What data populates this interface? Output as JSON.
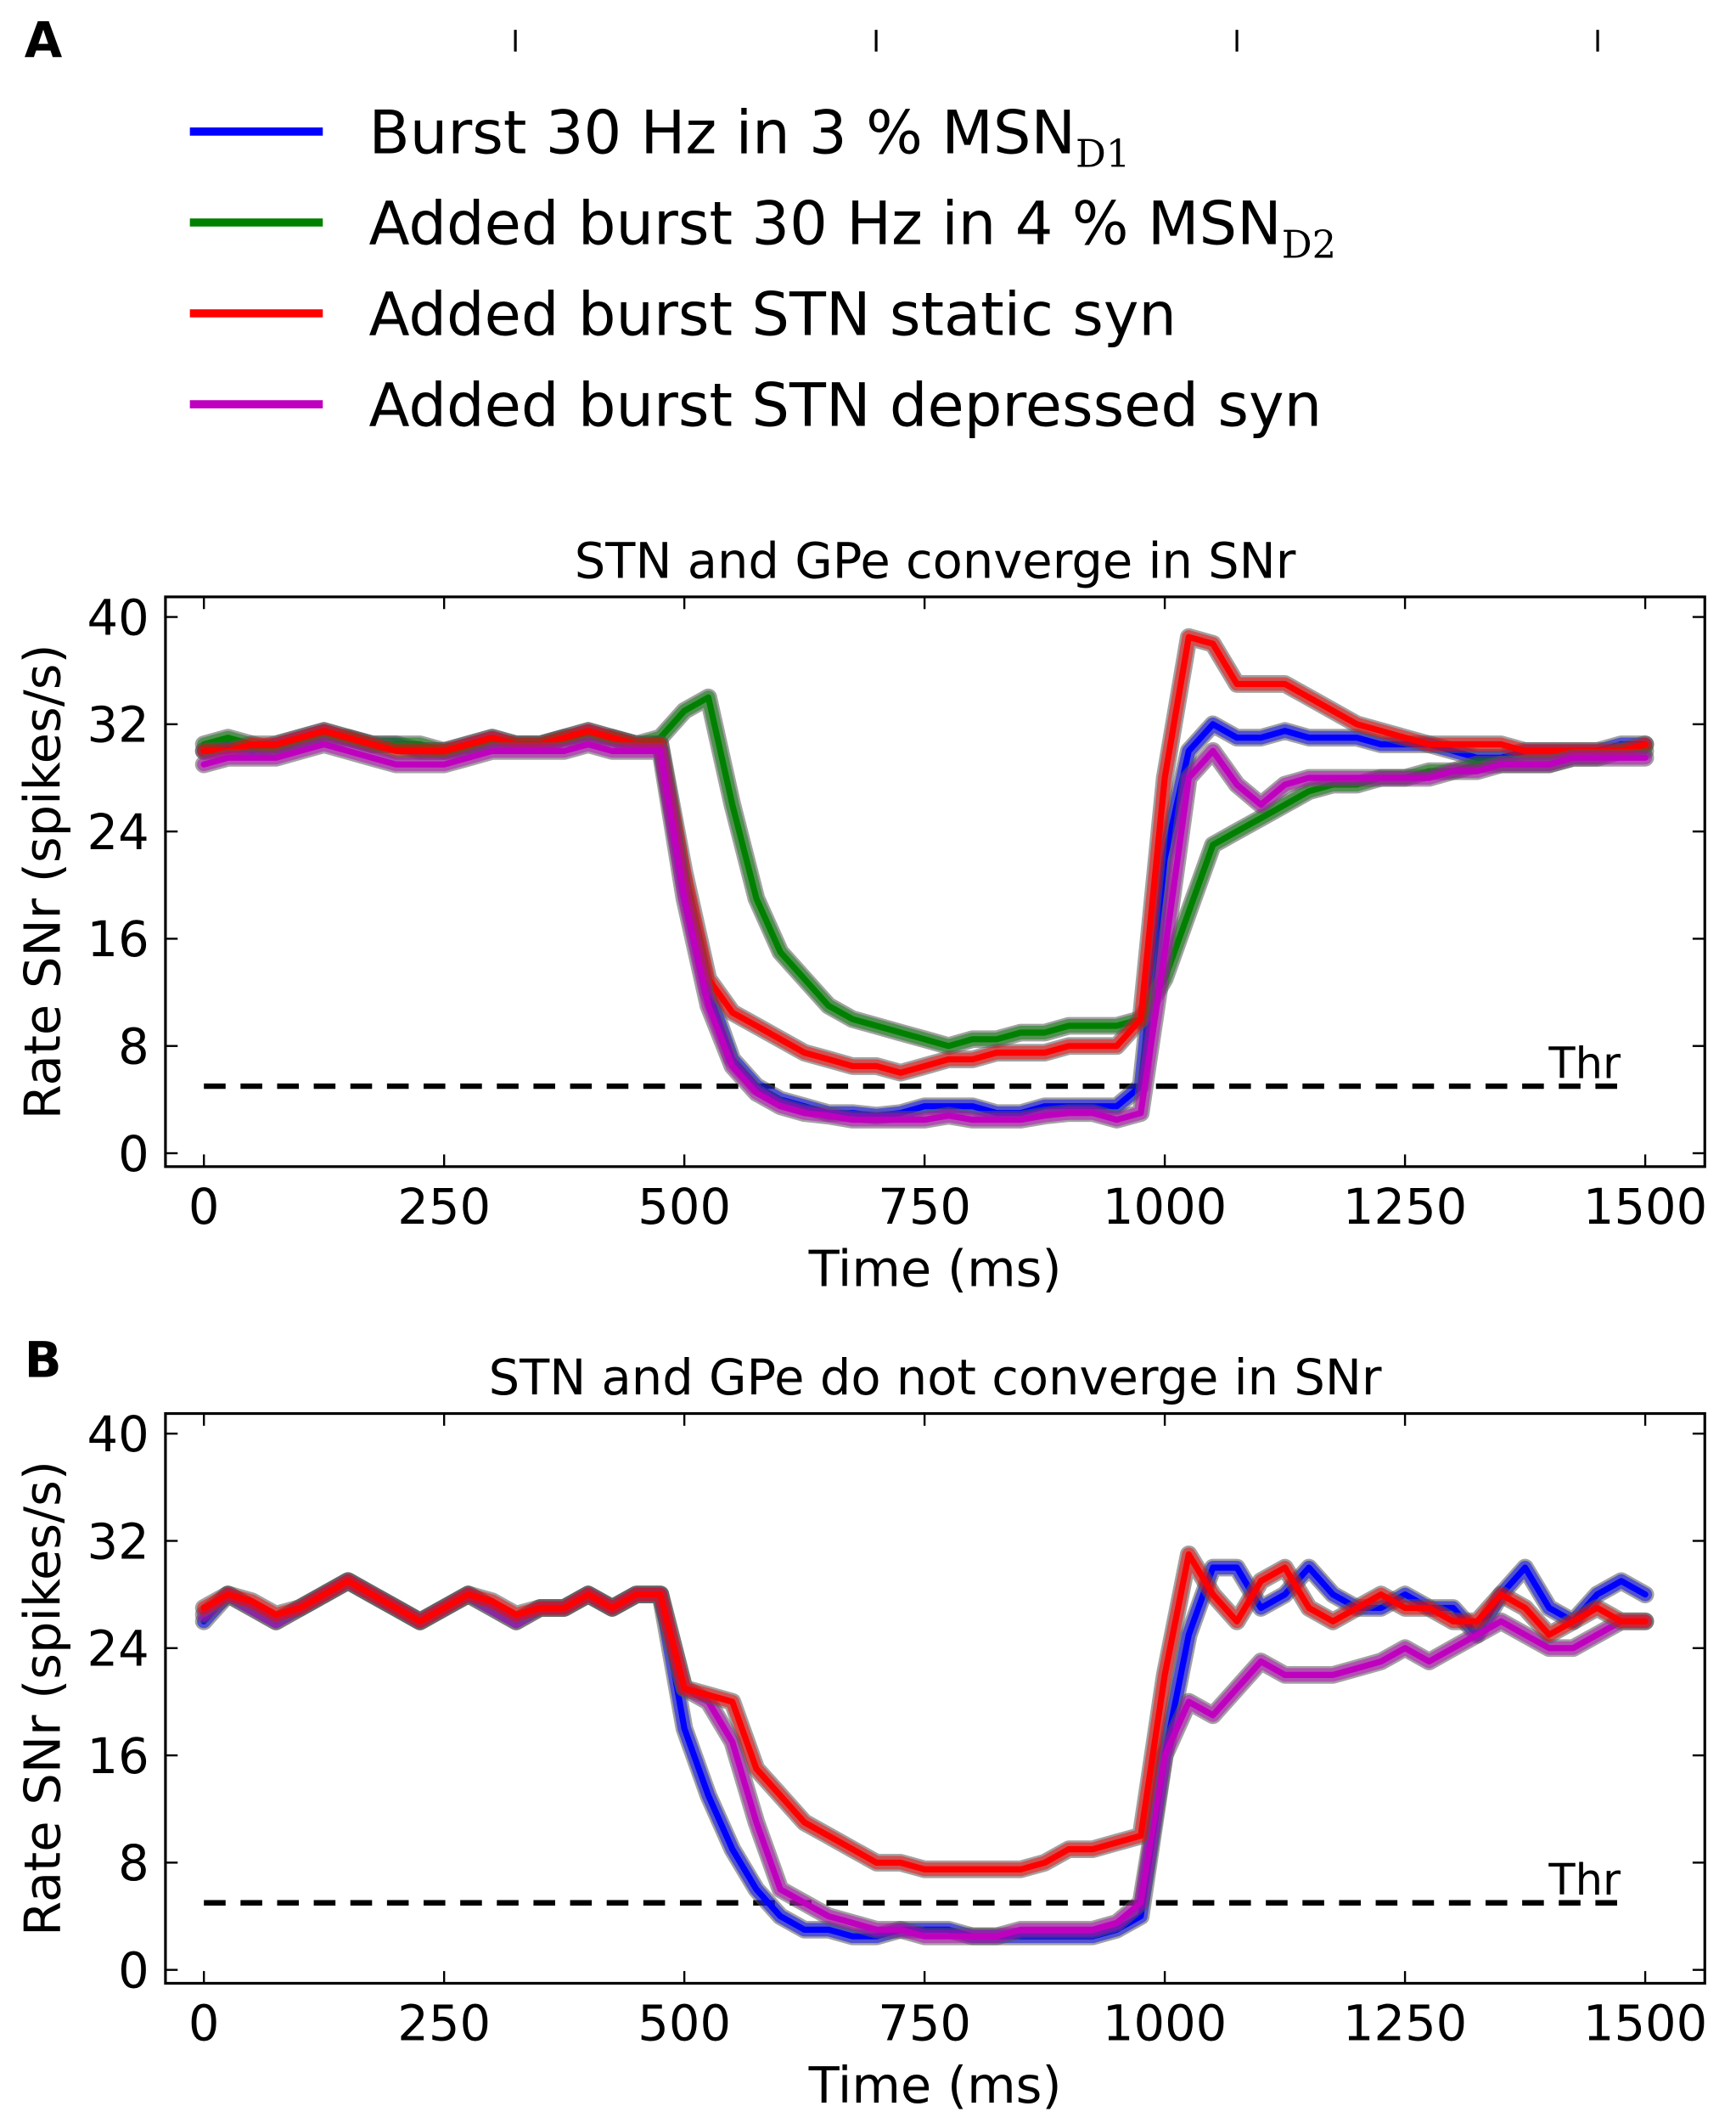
{
  "chart_data": [
    {
      "type": "line",
      "panel": "A",
      "title": "STN and GPe converge in SNr",
      "xlabel": "Time (ms)",
      "ylabel": "Rate SNr (spikes/s)",
      "legend": "top",
      "xlim": [
        -40,
        1562
      ],
      "ylim": [
        -1,
        41.5
      ],
      "xticks": [
        0,
        250,
        500,
        750,
        1000,
        1250,
        1500
      ],
      "yticks": [
        0,
        8,
        16,
        24,
        32,
        40
      ],
      "threshold": {
        "value": 5,
        "label": "Thr",
        "x": [
          0,
          1480
        ]
      },
      "x": [
        0,
        25,
        50,
        75,
        100,
        125,
        150,
        175,
        200,
        225,
        250,
        275,
        300,
        325,
        350,
        375,
        400,
        425,
        450,
        475,
        500,
        525,
        550,
        575,
        600,
        625,
        650,
        675,
        700,
        725,
        750,
        775,
        800,
        825,
        850,
        875,
        900,
        925,
        950,
        975,
        1000,
        1025,
        1050,
        1075,
        1100,
        1125,
        1150,
        1175,
        1200,
        1225,
        1250,
        1275,
        1300,
        1325,
        1350,
        1375,
        1400,
        1425,
        1450,
        1475,
        1500
      ],
      "series": [
        {
          "name": "Burst 30 Hz in 3 % MSN",
          "name_sub": "D1",
          "color": "#0000ff",
          "values": [
            30,
            30.5,
            30,
            30.5,
            31,
            31.5,
            31,
            30.5,
            30.5,
            30,
            30,
            30.5,
            31,
            30.5,
            30.5,
            31,
            31.5,
            31,
            30.5,
            30.5,
            20,
            12,
            7,
            5,
            4,
            3.5,
            3,
            3,
            2.8,
            3,
            3.5,
            3.5,
            3.5,
            3,
            3,
            3.5,
            3.5,
            3.5,
            3.5,
            5,
            22,
            30,
            32,
            31,
            31,
            31.5,
            31,
            31,
            31,
            30.5,
            30.5,
            30.5,
            30,
            29.5,
            29.5,
            30,
            30,
            30,
            30,
            30.5,
            30.5
          ]
        },
        {
          "name": "Added burst 30 Hz in 4 % MSN",
          "name_sub": "D2",
          "color": "#008000",
          "values": [
            30.5,
            31,
            30.5,
            30,
            30.5,
            31,
            31,
            30.5,
            30.5,
            30.5,
            30,
            30,
            30.5,
            30.5,
            30.5,
            31,
            31,
            31,
            30.5,
            31,
            33,
            34,
            26,
            19,
            15,
            13,
            11,
            10,
            9.5,
            9,
            8.5,
            8,
            8.5,
            8.5,
            9,
            9,
            9.5,
            9.5,
            9.5,
            10,
            13,
            18,
            23,
            24,
            25,
            26,
            27,
            27.5,
            27.5,
            28,
            28,
            28.5,
            28.5,
            29,
            29,
            29,
            29,
            29.5,
            29.5,
            30,
            30
          ]
        },
        {
          "name": "Added burst STN static syn",
          "color": "#ff0000",
          "values": [
            30,
            30,
            30.5,
            30.5,
            31,
            31.5,
            31,
            30.5,
            30,
            30,
            30,
            30.5,
            31,
            30.5,
            30.5,
            31,
            31.5,
            31,
            30.5,
            30.5,
            21,
            13,
            10.5,
            9.5,
            8.5,
            7.5,
            7,
            6.5,
            6.5,
            6,
            6.5,
            7,
            7,
            7.5,
            7.5,
            7.5,
            8,
            8,
            8,
            10,
            28,
            38.5,
            38,
            35,
            35,
            35,
            34,
            33,
            32,
            31.5,
            31,
            30.5,
            30.5,
            30.5,
            30.5,
            30,
            30,
            30,
            30,
            30,
            30.5
          ]
        },
        {
          "name": "Added burst STN depressed syn",
          "color": "#bf00bf",
          "values": [
            29,
            29.5,
            29.5,
            29.5,
            30,
            30.5,
            30,
            29.5,
            29,
            29,
            29,
            29.5,
            30,
            30,
            30,
            30,
            30.5,
            30,
            30,
            30,
            19,
            11,
            6.5,
            4.5,
            3.5,
            3,
            2.8,
            2.5,
            2.5,
            2.5,
            2.5,
            2.8,
            2.5,
            2.5,
            2.5,
            2.8,
            3,
            3,
            2.5,
            3,
            15,
            28,
            30,
            27.5,
            26,
            27.5,
            28,
            28,
            28,
            28,
            28,
            28,
            28.5,
            28.5,
            29,
            29,
            29,
            29.5,
            29.5,
            29.5,
            29.5
          ]
        }
      ]
    },
    {
      "type": "line",
      "panel": "B",
      "title": "STN and GPe do not converge in SNr",
      "xlabel": "Time (ms)",
      "ylabel": "Rate SNr (spikes/s)",
      "xlim": [
        -40,
        1562
      ],
      "ylim": [
        -1,
        41.5
      ],
      "xticks": [
        0,
        250,
        500,
        750,
        1000,
        1250,
        1500
      ],
      "yticks": [
        0,
        8,
        16,
        24,
        32,
        40
      ],
      "threshold": {
        "value": 5,
        "label": "Thr",
        "x": [
          0,
          1480
        ]
      },
      "x": [
        0,
        25,
        50,
        75,
        100,
        125,
        150,
        175,
        200,
        225,
        250,
        275,
        300,
        325,
        350,
        375,
        400,
        425,
        450,
        475,
        500,
        525,
        550,
        575,
        600,
        625,
        650,
        675,
        700,
        725,
        750,
        775,
        800,
        825,
        850,
        875,
        900,
        925,
        950,
        975,
        1000,
        1025,
        1050,
        1075,
        1100,
        1125,
        1150,
        1175,
        1200,
        1225,
        1250,
        1275,
        1300,
        1325,
        1350,
        1375,
        1400,
        1425,
        1450,
        1475,
        1500
      ],
      "series": [
        {
          "color": "#0000ff",
          "values": [
            26,
            28,
            27,
            26,
            27,
            28,
            29,
            28,
            27,
            26,
            27,
            28,
            27,
            26,
            27,
            27,
            28,
            27,
            28,
            28,
            18,
            13,
            9,
            6,
            4,
            3,
            3,
            2.5,
            2.5,
            3,
            3,
            3,
            2.5,
            2.5,
            2.5,
            2.5,
            2.5,
            2.5,
            3,
            4,
            16,
            25,
            30,
            30,
            27,
            28,
            30,
            28,
            27,
            27,
            28,
            27,
            27,
            25,
            28,
            30,
            27,
            26,
            28,
            29,
            28
          ]
        },
        {
          "color": "#bf00bf",
          "values": [
            26.5,
            28,
            27,
            26,
            27,
            28,
            29,
            28,
            27,
            26,
            27,
            28,
            27,
            26,
            27,
            27,
            28,
            27,
            28,
            28,
            21,
            20,
            17,
            11,
            6,
            5,
            4,
            3.5,
            3,
            3,
            2.5,
            2.5,
            2.5,
            2.5,
            3,
            3,
            3,
            3,
            3.5,
            5,
            16,
            20,
            19,
            21,
            23,
            22,
            22,
            22,
            22.5,
            23,
            24,
            23,
            24,
            25,
            26,
            25,
            24,
            24,
            25,
            26,
            26
          ]
        },
        {
          "color": "#ff0000",
          "values": [
            27,
            28,
            27.5,
            26.5,
            27,
            28,
            29,
            28,
            27,
            26,
            27,
            28,
            27.5,
            26.5,
            27,
            27,
            28,
            27,
            28,
            28,
            21,
            20.5,
            20,
            15,
            13,
            11,
            10,
            9,
            8,
            8,
            7.5,
            7.5,
            7.5,
            7.5,
            7.5,
            8,
            9,
            9,
            9.5,
            10,
            22,
            31,
            28,
            26,
            29,
            30,
            27,
            26,
            27,
            28,
            27,
            27,
            26,
            26,
            28,
            27,
            25,
            26,
            27,
            26,
            26
          ]
        }
      ]
    }
  ]
}
